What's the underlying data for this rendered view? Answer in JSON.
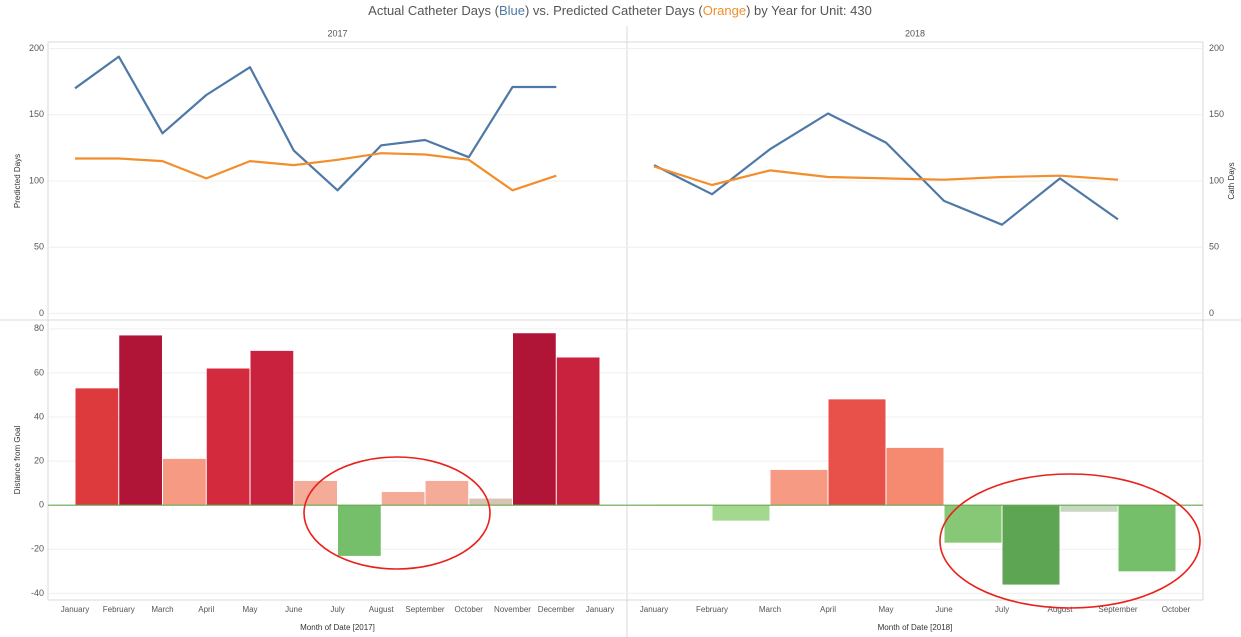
{
  "chart_data": {
    "type": "combo",
    "title_parts": [
      {
        "text": "Actual Catheter Days (",
        "color": "#555555"
      },
      {
        "text": "Blue",
        "color": "#4e79a7"
      },
      {
        "text": ") vs. Predicted Catheter Days (",
        "color": "#555555"
      },
      {
        "text": "Orange",
        "color": "#f28e2b"
      },
      {
        "text": ") by Year for Unit: 430",
        "color": "#555555"
      }
    ],
    "line": {
      "ylabel": "Predicted Days",
      "y2label": "Cath Days",
      "ylim": [
        -5,
        205
      ],
      "yticks": [
        0,
        50,
        100,
        150,
        200
      ],
      "y2lim": [
        -5,
        205
      ],
      "y2ticks": [
        0,
        50,
        100,
        150,
        200
      ],
      "grid": true
    },
    "bar": {
      "ylabel": "Distance from Goal",
      "ylim": [
        -43,
        84
      ],
      "yticks": [
        -40,
        -20,
        0,
        20,
        40,
        60,
        80
      ],
      "grid": true,
      "zero_color": "#6aa84f"
    },
    "panels": [
      {
        "title": "2017",
        "xlabel": "Month of Date [2017]",
        "categories": [
          "January",
          "February",
          "March",
          "April",
          "May",
          "June",
          "July",
          "August",
          "September",
          "October",
          "November",
          "December",
          "January"
        ],
        "series": [
          {
            "color": "#4e79a7",
            "axis": "y2",
            "values": [
              170,
              194,
              136,
              165,
              186,
              123,
              93,
              127,
              131,
              118,
              171,
              171,
              null
            ]
          },
          {
            "color": "#f28e2b",
            "values": [
              117,
              117,
              115,
              102,
              115,
              112,
              116,
              121,
              120,
              116,
              93,
              104,
              null
            ]
          }
        ],
        "bar_values": [
          53,
          77,
          21,
          62,
          70,
          11,
          -23,
          6,
          11,
          3,
          78,
          67,
          null
        ],
        "bar_colors": [
          "#dc3a3d",
          "#b01437",
          "#f79a83",
          "#d42a3d",
          "#c8223f",
          "#f4ac98",
          "#76bf6a",
          "#f4ac98",
          "#f4ac98",
          "#d8c3b4",
          "#b01437",
          "#c8223f",
          null
        ]
      },
      {
        "title": "2018",
        "xlabel": "Month of Date [2018]",
        "categories": [
          "January",
          "February",
          "March",
          "April",
          "May",
          "June",
          "July",
          "August",
          "September",
          "October"
        ],
        "series": [
          {
            "color": "#4e79a7",
            "axis": "y2",
            "values": [
              112,
              90,
              124,
              151,
              129,
              85,
              67,
              102,
              71,
              null
            ]
          },
          {
            "color": "#f28e2b",
            "values": [
              111,
              97,
              108,
              103,
              102,
              101,
              103,
              104,
              101,
              null
            ]
          }
        ],
        "bar_values": [
          0.3,
          -7,
          16,
          48,
          26,
          -17,
          -36,
          -3,
          -30,
          null
        ],
        "bar_colors": [
          "#c8d8c0",
          "#a3d98e",
          "#f79a83",
          "#e8504a",
          "#f58a70",
          "#86c875",
          "#5da552",
          "#c8d8c0",
          "#76bf6a",
          null
        ]
      }
    ]
  }
}
